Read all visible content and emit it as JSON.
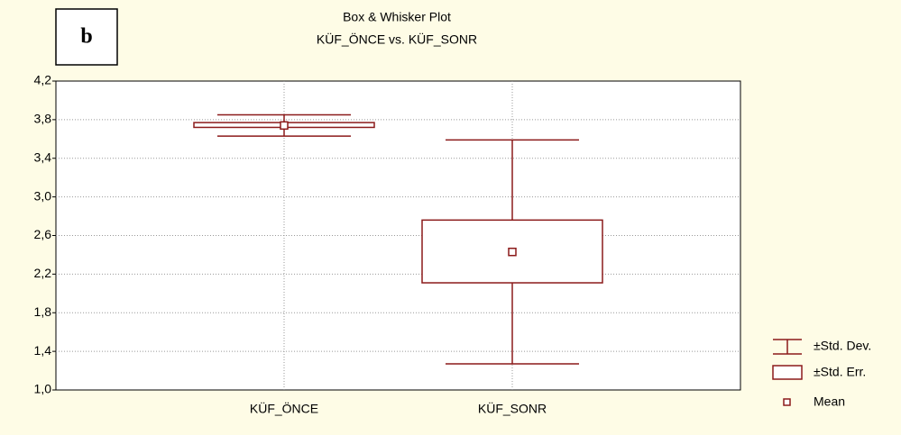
{
  "chart_data": {
    "type": "box",
    "panel_label": "b",
    "title": "Box & Whisker Plot",
    "subtitle": "KÜF_ÖNCE vs. KÜF_SONR",
    "categories": [
      "KÜF_ÖNCE",
      "KÜF_SONR"
    ],
    "mean": [
      3.74,
      2.43
    ],
    "box_low": [
      3.72,
      2.11
    ],
    "box_high": [
      3.77,
      2.76
    ],
    "whisker_low": [
      3.63,
      1.27
    ],
    "whisker_high": [
      3.85,
      3.59
    ],
    "color": "#8b1a1a",
    "ylim": [
      1.0,
      4.2
    ],
    "yticks": [
      {
        "value": 1.0,
        "label": "1,0"
      },
      {
        "value": 1.4,
        "label": "1,4"
      },
      {
        "value": 1.8,
        "label": "1,8"
      },
      {
        "value": 2.2,
        "label": "2,2"
      },
      {
        "value": 2.6,
        "label": "2,6"
      },
      {
        "value": 3.0,
        "label": "3,0"
      },
      {
        "value": 3.4,
        "label": "3,4"
      },
      {
        "value": 3.8,
        "label": "3,8"
      },
      {
        "value": 4.2,
        "label": "4,2"
      }
    ],
    "grid": true,
    "legend": [
      "±Std. Dev.",
      "±Std. Err.",
      "Mean"
    ]
  }
}
